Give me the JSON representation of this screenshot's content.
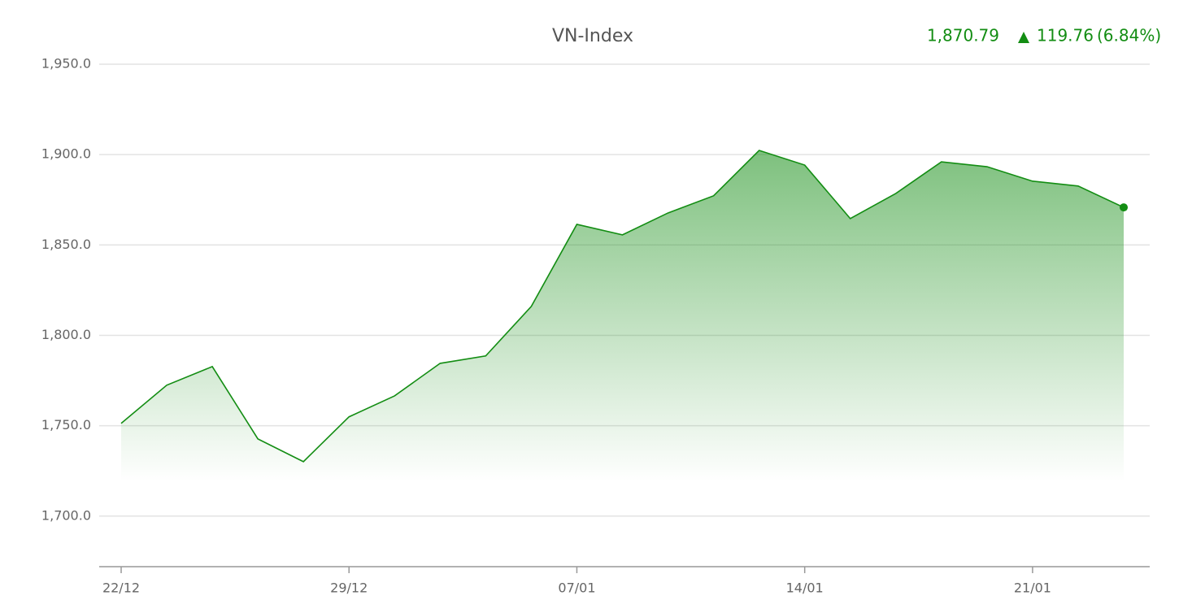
{
  "chart_data": {
    "type": "area",
    "title": "VN-Index",
    "last_value": "1,870.79",
    "change": "119.76",
    "change_pct": "(6.84%)",
    "categories": [
      "22/12",
      null,
      null,
      null,
      null,
      "29/12",
      null,
      null,
      null,
      null,
      "07/01",
      null,
      null,
      null,
      null,
      "14/01",
      null,
      null,
      null,
      null,
      "21/01",
      null,
      null
    ],
    "series": [
      {
        "name": "VN-Index",
        "color": "#138d13",
        "values": [
          1751.3,
          1772.4,
          1782.7,
          1742.7,
          1730.1,
          1754.9,
          1766.5,
          1784.5,
          1788.6,
          1816.0,
          1861.4,
          1855.6,
          1867.7,
          1877.2,
          1902.3,
          1894.2,
          1864.6,
          1878.5,
          1896.0,
          1893.3,
          1885.3,
          1882.6,
          1870.79
        ]
      }
    ],
    "ylim": [
      1672,
      1950
    ],
    "yticks": [
      {
        "value": 1700,
        "label": "1,700.0"
      },
      {
        "value": 1750,
        "label": "1,750.0"
      },
      {
        "value": 1800,
        "label": "1,800.0"
      },
      {
        "value": 1850,
        "label": "1,850.0"
      },
      {
        "value": 1900,
        "label": "1,900.0"
      },
      {
        "value": 1950,
        "label": "1,950.0"
      }
    ],
    "grid": true
  }
}
